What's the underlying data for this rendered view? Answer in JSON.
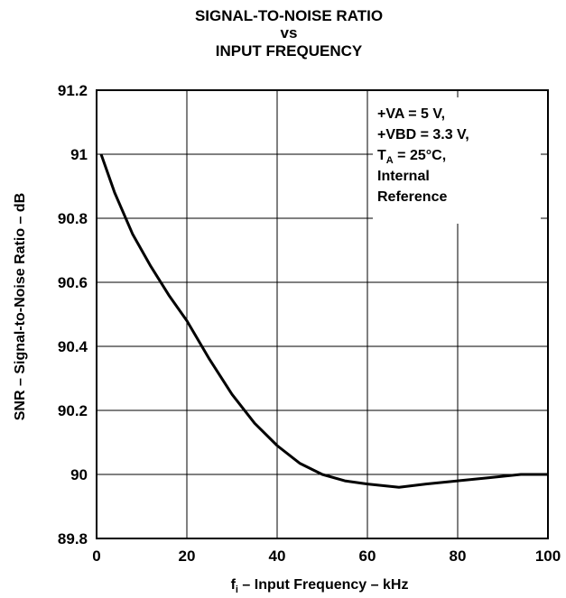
{
  "chart_data": {
    "type": "line",
    "title_lines": [
      "SIGNAL-TO-NOISE RATIO",
      "vs",
      "INPUT FREQUENCY"
    ],
    "xlabel": {
      "prefix": "f",
      "sub": "i",
      "rest": " – Input Frequency – kHz"
    },
    "ylabel": "SNR – Signal-to-Noise Ratio – dB",
    "xlim": [
      0,
      100
    ],
    "ylim": [
      89.8,
      91.2
    ],
    "x_ticks": [
      0,
      20,
      40,
      60,
      80,
      100
    ],
    "y_ticks": [
      89.8,
      90,
      90.2,
      90.4,
      90.6,
      90.8,
      91,
      91.2
    ],
    "x_tick_labels": [
      "0",
      "20",
      "40",
      "60",
      "80",
      "100"
    ],
    "y_tick_labels": [
      "89.8",
      "90",
      "90.2",
      "90.4",
      "90.6",
      "90.8",
      "91",
      "91.2"
    ],
    "grid": true,
    "annotation": {
      "lines": [
        {
          "text": "+VA = 5 V,"
        },
        {
          "text": "+VBD = 3.3 V,"
        },
        {
          "prefix": "T",
          "sub": "A",
          "rest": " = 25°C,"
        },
        {
          "text": "Internal"
        },
        {
          "text": "Reference"
        }
      ]
    },
    "series": [
      {
        "x": [
          1,
          4,
          8,
          12,
          16,
          20,
          25,
          30,
          35,
          40,
          45,
          50,
          55,
          60,
          67,
          73,
          80,
          87,
          94,
          100
        ],
        "y": [
          91.0,
          90.88,
          90.75,
          90.65,
          90.56,
          90.48,
          90.36,
          90.25,
          90.16,
          90.09,
          90.035,
          90.0,
          89.98,
          89.97,
          89.96,
          89.97,
          89.98,
          89.99,
          90.0,
          90.0
        ]
      }
    ]
  }
}
